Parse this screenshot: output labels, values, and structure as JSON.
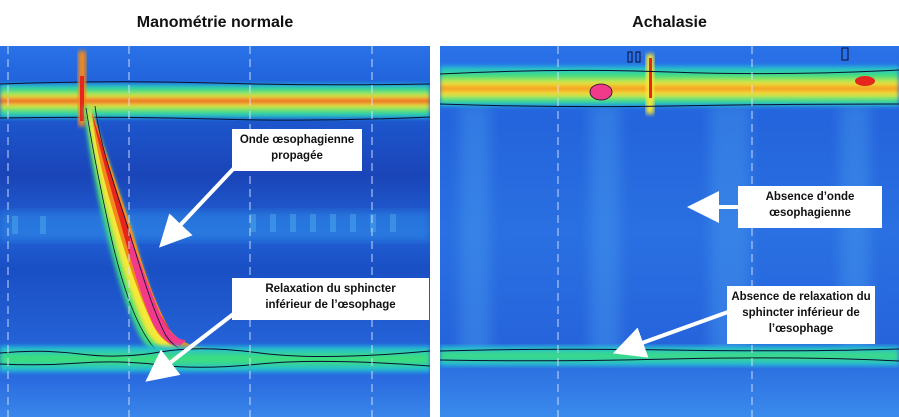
{
  "panels": {
    "left": {
      "title": "Manométrie normale",
      "callouts": {
        "wave": "Onde œsophagienne\npropagée",
        "relaxation": "Relaxation du sphincter\ninférieur de l’œsophage"
      }
    },
    "right": {
      "title": "Achalasie",
      "callouts": {
        "no_wave": "Absence d’onde\nœsophagienne",
        "no_relaxation": "Absence de relaxation du\nsphincter inférieur de\nl’œsophage"
      }
    }
  },
  "colors": {
    "background_blue": "#1f5bd8",
    "dark_blue": "#1238a8",
    "cyan": "#1fb4e6",
    "green": "#3ee07a",
    "yellow": "#f6e838",
    "orange": "#f38a1c",
    "red": "#e6261c",
    "magenta": "#f23a8a",
    "arrow": "#ffffff"
  }
}
